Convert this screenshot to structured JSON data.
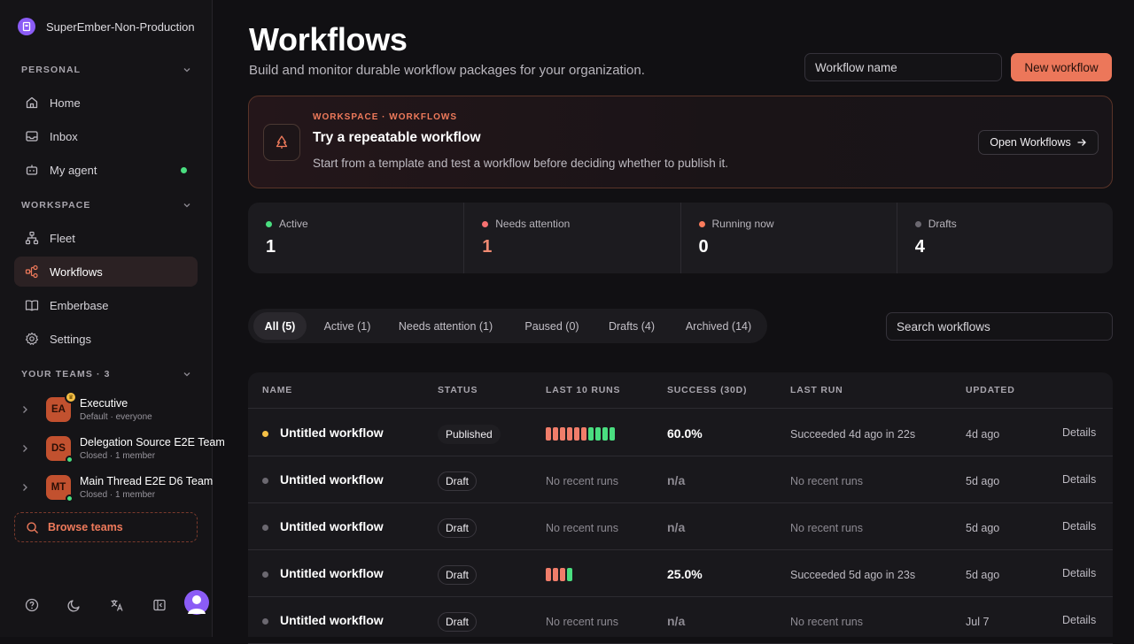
{
  "org": {
    "name": "SuperEmber-Non-Production"
  },
  "sidebar": {
    "personal_title": "PERSONAL",
    "personal_items": [
      {
        "label": "Home",
        "icon": "home-icon"
      },
      {
        "label": "Inbox",
        "icon": "inbox-icon"
      },
      {
        "label": "My agent",
        "icon": "agent-icon",
        "online": true
      }
    ],
    "workspace_title": "WORKSPACE",
    "workspace_items": [
      {
        "label": "Fleet",
        "icon": "fleet-icon"
      },
      {
        "label": "Workflows",
        "icon": "workflows-icon",
        "active": true
      },
      {
        "label": "Emberbase",
        "icon": "book-icon"
      },
      {
        "label": "Settings",
        "icon": "gear-icon"
      }
    ],
    "teams_title": "YOUR TEAMS · 3",
    "teams": [
      {
        "initials": "EA",
        "name": "Executive",
        "sub": "Default · everyone"
      },
      {
        "initials": "DS",
        "name": "Delegation Source E2E Team",
        "sub": "Closed · 1 member"
      },
      {
        "initials": "MT",
        "name": "Main Thread E2E D6 Team",
        "sub": "Closed · 1 member"
      }
    ],
    "browse_label": "Browse teams"
  },
  "header": {
    "title": "Workflows",
    "subtitle": "Build and monitor durable workflow packages for your organization.",
    "name_placeholder": "Workflow name",
    "new_button": "New workflow"
  },
  "banner": {
    "eyebrow": "WORKSPACE · WORKFLOWS",
    "title": "Try a repeatable workflow",
    "description": "Start from a template and test a workflow before deciding whether to publish it.",
    "button": "Open Workflows"
  },
  "stats": [
    {
      "label": "Active",
      "value": "1",
      "color": "#4ade80",
      "value_color": "#ffffff"
    },
    {
      "label": "Needs attention",
      "value": "1",
      "color": "#f87171",
      "value_color": "#f08a72"
    },
    {
      "label": "Running now",
      "value": "0",
      "color": "#fb7c5c",
      "value_color": "#ffffff"
    },
    {
      "label": "Drafts",
      "value": "4",
      "color": "#6b6870",
      "value_color": "#ffffff"
    }
  ],
  "filters": [
    "All (5)",
    "Active (1)",
    "Needs attention (1)",
    "Paused (0)",
    "Drafts (4)",
    "Archived (14)"
  ],
  "search_placeholder": "Search workflows",
  "table": {
    "columns": [
      "NAME",
      "STATUS",
      "LAST 10 RUNS",
      "SUCCESS (30D)",
      "LAST RUN",
      "UPDATED"
    ],
    "rows": [
      {
        "name": "Untitled workflow",
        "status": "Published",
        "dot": "#f5c046",
        "runs": [
          "fail",
          "fail",
          "fail",
          "fail",
          "fail",
          "fail",
          "success",
          "success",
          "success",
          "success"
        ],
        "success": "60.0%",
        "last_run": "Succeeded 4d ago in 22s",
        "updated": "4d ago",
        "details": "Details"
      },
      {
        "name": "Untitled workflow",
        "status": "Draft",
        "dot": "#6b6870",
        "runs": [],
        "no_runs": "No recent runs",
        "success": "n/a",
        "last_run": "No recent runs",
        "updated": "5d ago",
        "details": "Details"
      },
      {
        "name": "Untitled workflow",
        "status": "Draft",
        "dot": "#6b6870",
        "runs": [],
        "no_runs": "No recent runs",
        "success": "n/a",
        "last_run": "No recent runs",
        "updated": "5d ago",
        "details": "Details"
      },
      {
        "name": "Untitled workflow",
        "status": "Draft",
        "dot": "#6b6870",
        "runs": [
          "fail",
          "fail",
          "fail",
          "success"
        ],
        "success": "25.0%",
        "last_run": "Succeeded 5d ago in 23s",
        "updated": "5d ago",
        "details": "Details"
      },
      {
        "name": "Untitled workflow",
        "status": "Draft",
        "dot": "#6b6870",
        "runs": [],
        "no_runs": "No recent runs",
        "success": "n/a",
        "last_run": "No recent runs",
        "updated": "Jul 7",
        "details": "Details"
      }
    ]
  },
  "colors": {
    "accent": "#ec775a",
    "run_fail": "#f07d6a",
    "run_success": "#4ade80"
  }
}
